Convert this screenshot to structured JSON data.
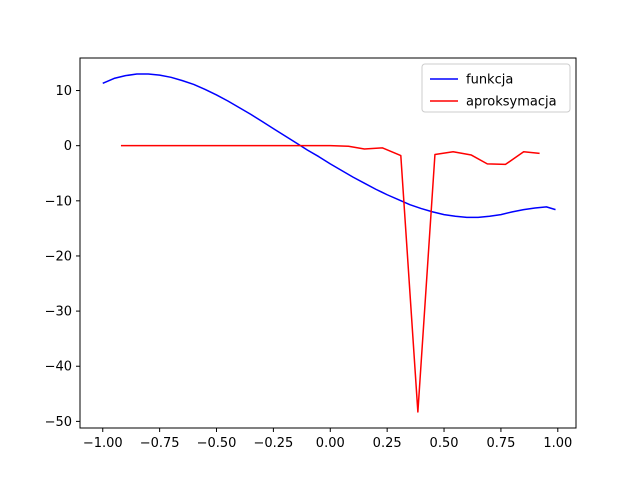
{
  "chart_data": {
    "type": "line",
    "title": "",
    "xlabel": "",
    "ylabel": "",
    "xlim": [
      -1.1,
      1.08
    ],
    "ylim": [
      -51.2,
      15.9
    ],
    "grid": false,
    "legend_position": "top-right",
    "x_ticks": [
      -1.0,
      -0.75,
      -0.5,
      -0.25,
      0.0,
      0.25,
      0.5,
      0.75,
      1.0
    ],
    "x_tick_labels": [
      "−1.00",
      "−0.75",
      "−0.50",
      "−0.25",
      "0.00",
      "0.25",
      "0.50",
      "0.75",
      "1.00"
    ],
    "y_ticks": [
      10,
      0,
      -10,
      -20,
      -30,
      -40,
      -50
    ],
    "y_tick_labels": [
      "10",
      "0",
      "−10",
      "−20",
      "−30",
      "−40",
      "−50"
    ],
    "series": [
      {
        "name": "funkcja",
        "color": "#0000ff",
        "x": [
          -1.0,
          -0.95,
          -0.9,
          -0.85,
          -0.8,
          -0.75,
          -0.7,
          -0.65,
          -0.6,
          -0.55,
          -0.5,
          -0.45,
          -0.4,
          -0.35,
          -0.3,
          -0.25,
          -0.2,
          -0.15,
          -0.1,
          -0.05,
          0.0,
          0.05,
          0.1,
          0.15,
          0.2,
          0.25,
          0.3,
          0.35,
          0.4,
          0.45,
          0.5,
          0.55,
          0.6,
          0.65,
          0.7,
          0.75,
          0.8,
          0.85,
          0.9,
          0.95,
          0.99
        ],
        "y": [
          11.3,
          12.2,
          12.7,
          13.0,
          13.0,
          12.8,
          12.4,
          11.8,
          11.1,
          10.2,
          9.2,
          8.1,
          6.9,
          5.7,
          4.4,
          3.1,
          1.8,
          0.5,
          -0.8,
          -2.0,
          -3.3,
          -4.5,
          -5.7,
          -6.8,
          -7.9,
          -8.9,
          -9.8,
          -10.7,
          -11.4,
          -12.0,
          -12.5,
          -12.8,
          -13.0,
          -13.0,
          -12.8,
          -12.5,
          -12.0,
          -11.6,
          -11.3,
          -11.1,
          -11.6
        ]
      },
      {
        "name": "aproksymacja",
        "color": "#ff0000",
        "x": [
          -0.92,
          -0.85,
          -0.77,
          -0.69,
          -0.62,
          -0.54,
          -0.46,
          -0.38,
          -0.31,
          -0.23,
          -0.15,
          -0.08,
          0.0,
          0.08,
          0.15,
          0.23,
          0.31,
          0.385,
          0.46,
          0.54,
          0.62,
          0.69,
          0.77,
          0.85,
          0.92
        ],
        "y": [
          0.0,
          0.0,
          0.0,
          0.0,
          0.0,
          0.0,
          0.0,
          0.0,
          0.0,
          0.0,
          0.0,
          0.0,
          0.0,
          -0.1,
          -0.6,
          -0.4,
          -1.8,
          -48.3,
          -1.6,
          -1.1,
          -1.7,
          -3.3,
          -3.4,
          -1.1,
          -1.4
        ]
      }
    ]
  }
}
